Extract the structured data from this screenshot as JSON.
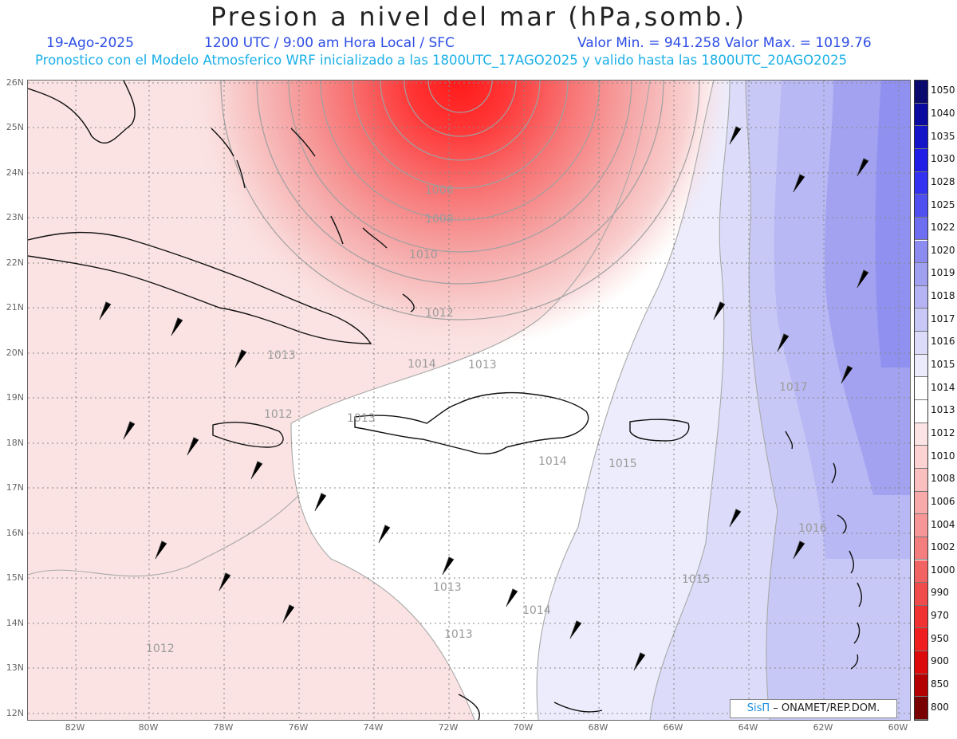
{
  "title": "Presion a nivel del mar (hPa,somb.)",
  "subtitle": {
    "date": "19-Ago-2025",
    "time": "1200 UTC / 9:00 am Hora Local / SFC",
    "min_max": "Valor Min. = 941.258  Valor Max. = 1019.76",
    "model_line": "Pronostico con el Modelo Atmosferico WRF inicializado a las 1800UTC_17AGO2025 y valido hasta las  1800UTC_20AGO2025"
  },
  "map": {
    "lat_labels": [
      "26N",
      "25N",
      "24N",
      "23N",
      "22N",
      "21N",
      "20N",
      "19N",
      "18N",
      "17N",
      "16N",
      "15N",
      "14N",
      "13N",
      "12N"
    ],
    "lon_labels": [
      "82W",
      "80W",
      "78W",
      "76W",
      "74W",
      "72W",
      "70W",
      "68W",
      "66W",
      "64W",
      "62W",
      "60W"
    ],
    "contour_labels": [
      "1006",
      "1008",
      "1010",
      "1012",
      "1013",
      "1014",
      "1013",
      "1012",
      "1013",
      "1014",
      "1015",
      "1017",
      "1016",
      "1015",
      "1013",
      "1014",
      "1013",
      "1012"
    ]
  },
  "colorbar": {
    "levels": [
      "1050",
      "1040",
      "1035",
      "1030",
      "1028",
      "1025",
      "1022",
      "1020",
      "1019",
      "1018",
      "1017",
      "1016",
      "1015",
      "1014",
      "1013",
      "1012",
      "1010",
      "1008",
      "1006",
      "1004",
      "1002",
      "1000",
      "990",
      "970",
      "950",
      "900",
      "850",
      "800"
    ],
    "colors": [
      "#0a0a6e",
      "#0a0aa0",
      "#1414c8",
      "#1e1ee6",
      "#3232f0",
      "#5050f0",
      "#6e6ef0",
      "#8c8cf0",
      "#a0a0f0",
      "#b4b4f4",
      "#c8c8f6",
      "#dcdcfa",
      "#ebebfc",
      "#ffffff",
      "#ffffff",
      "#fde4e4",
      "#fcd2d2",
      "#fac0c0",
      "#f8aaaa",
      "#f69696",
      "#f47e7e",
      "#f26464",
      "#f04c4c",
      "#f03232",
      "#f01e1e",
      "#dc0a0a",
      "#b40000",
      "#780000"
    ]
  },
  "credit": {
    "sis": "SisΠ",
    "org": "– ONAMET/REP.DOM."
  }
}
